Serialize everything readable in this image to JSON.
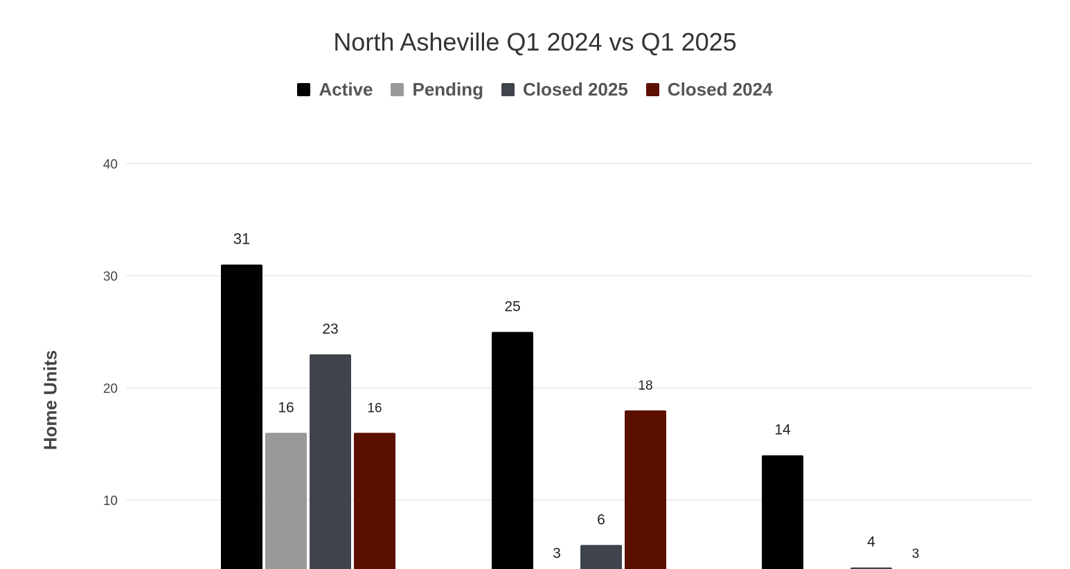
{
  "chart_data": {
    "type": "bar",
    "title": "North Asheville Q1 2024 vs Q1 2025",
    "xlabel": "",
    "ylabel": "Home Units",
    "ylim": [
      0,
      40
    ],
    "yticks": [
      10,
      20,
      30,
      40
    ],
    "grid": true,
    "legend_position": "top-center",
    "categories": [
      "",
      "",
      ""
    ],
    "series": [
      {
        "name": "Active",
        "color": "#000000",
        "values": [
          31,
          25,
          14
        ]
      },
      {
        "name": "Pending",
        "color": "#999999",
        "values": [
          16,
          3,
          null
        ]
      },
      {
        "name": "Closed 2025",
        "color": "#3f444c",
        "values": [
          23,
          6,
          4
        ]
      },
      {
        "name": "Closed 2024",
        "color": "#5c1000",
        "values": [
          16,
          18,
          3
        ]
      }
    ]
  }
}
